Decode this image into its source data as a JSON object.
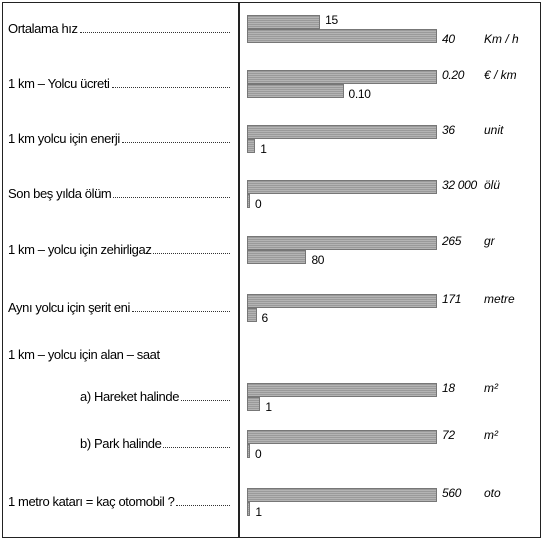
{
  "items": [
    {
      "label": "Ortalama hız",
      "values": [
        15,
        40
      ],
      "unit": "Km / h"
    },
    {
      "label": "1 km – Yolcu ücreti",
      "values": [
        0.2,
        0.1
      ],
      "value_labels": [
        "0.20",
        "0.10"
      ],
      "unit": "€ / km"
    },
    {
      "label": "1 km yolcu için enerji",
      "values": [
        36,
        1
      ],
      "unit": "unit"
    },
    {
      "label": "Son beş yılda ölüm",
      "values": [
        32000,
        0
      ],
      "value_labels": [
        "32 000",
        "0"
      ],
      "unit": "ölü"
    },
    {
      "label": "1 km – yolcu için zehirligaz",
      "values": [
        265,
        80
      ],
      "unit": "gr"
    },
    {
      "label": "Aynı yolcu için şerit eni",
      "values": [
        171,
        6
      ],
      "unit": "metre"
    },
    {
      "label": "1 km – yolcu için alan – saat",
      "rows": [
        {
          "label": "a)  Hareket halinde",
          "values": [
            18,
            1
          ],
          "unit": "m²"
        },
        {
          "label": "b)  Park halinde",
          "values": [
            72,
            0
          ],
          "unit": "m²"
        }
      ]
    },
    {
      "label": "1 metro katarı = kaç otomobil ?",
      "values": [
        560,
        1
      ],
      "unit": "oto"
    }
  ]
}
